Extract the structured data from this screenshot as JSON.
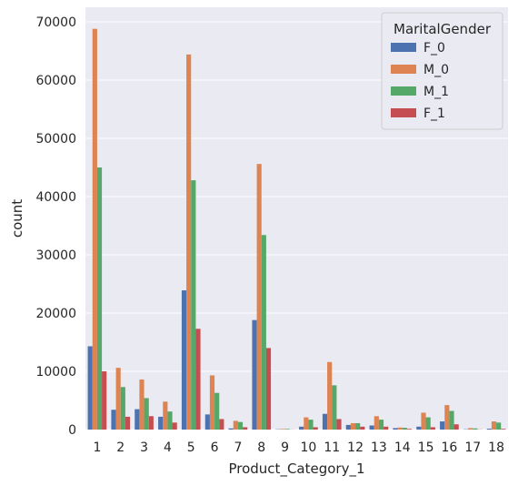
{
  "chart_data": {
    "type": "bar",
    "xlabel": "Product_Category_1",
    "ylabel": "count",
    "ylim": [
      0,
      72500
    ],
    "yticks": [
      0,
      10000,
      20000,
      30000,
      40000,
      50000,
      60000,
      70000
    ],
    "grid": true,
    "legend_position": "top-right",
    "legend_title": "MaritalGender",
    "categories": [
      "1",
      "2",
      "3",
      "4",
      "5",
      "6",
      "7",
      "8",
      "9",
      "10",
      "11",
      "12",
      "13",
      "14",
      "15",
      "16",
      "17",
      "18"
    ],
    "series": [
      {
        "name": "F_0",
        "color": "#4c72b0",
        "values": [
          14300,
          3400,
          3500,
          2200,
          23900,
          2600,
          200,
          18800,
          50,
          500,
          2700,
          800,
          700,
          250,
          500,
          1400,
          50,
          150
        ]
      },
      {
        "name": "M_0",
        "color": "#dd8452",
        "values": [
          68800,
          10600,
          8600,
          4800,
          64400,
          9300,
          1500,
          45600,
          100,
          2100,
          11600,
          1100,
          2300,
          350,
          2900,
          4200,
          250,
          1400
        ]
      },
      {
        "name": "M_1",
        "color": "#55a868",
        "values": [
          45000,
          7300,
          5400,
          3100,
          42800,
          6300,
          1300,
          33400,
          100,
          1700,
          7600,
          1100,
          1700,
          300,
          2100,
          3200,
          200,
          1200
        ]
      },
      {
        "name": "F_1",
        "color": "#c44e52",
        "values": [
          10000,
          2200,
          2300,
          1200,
          17300,
          1800,
          400,
          14000,
          20,
          400,
          1800,
          500,
          500,
          120,
          400,
          900,
          30,
          120
        ]
      }
    ]
  }
}
